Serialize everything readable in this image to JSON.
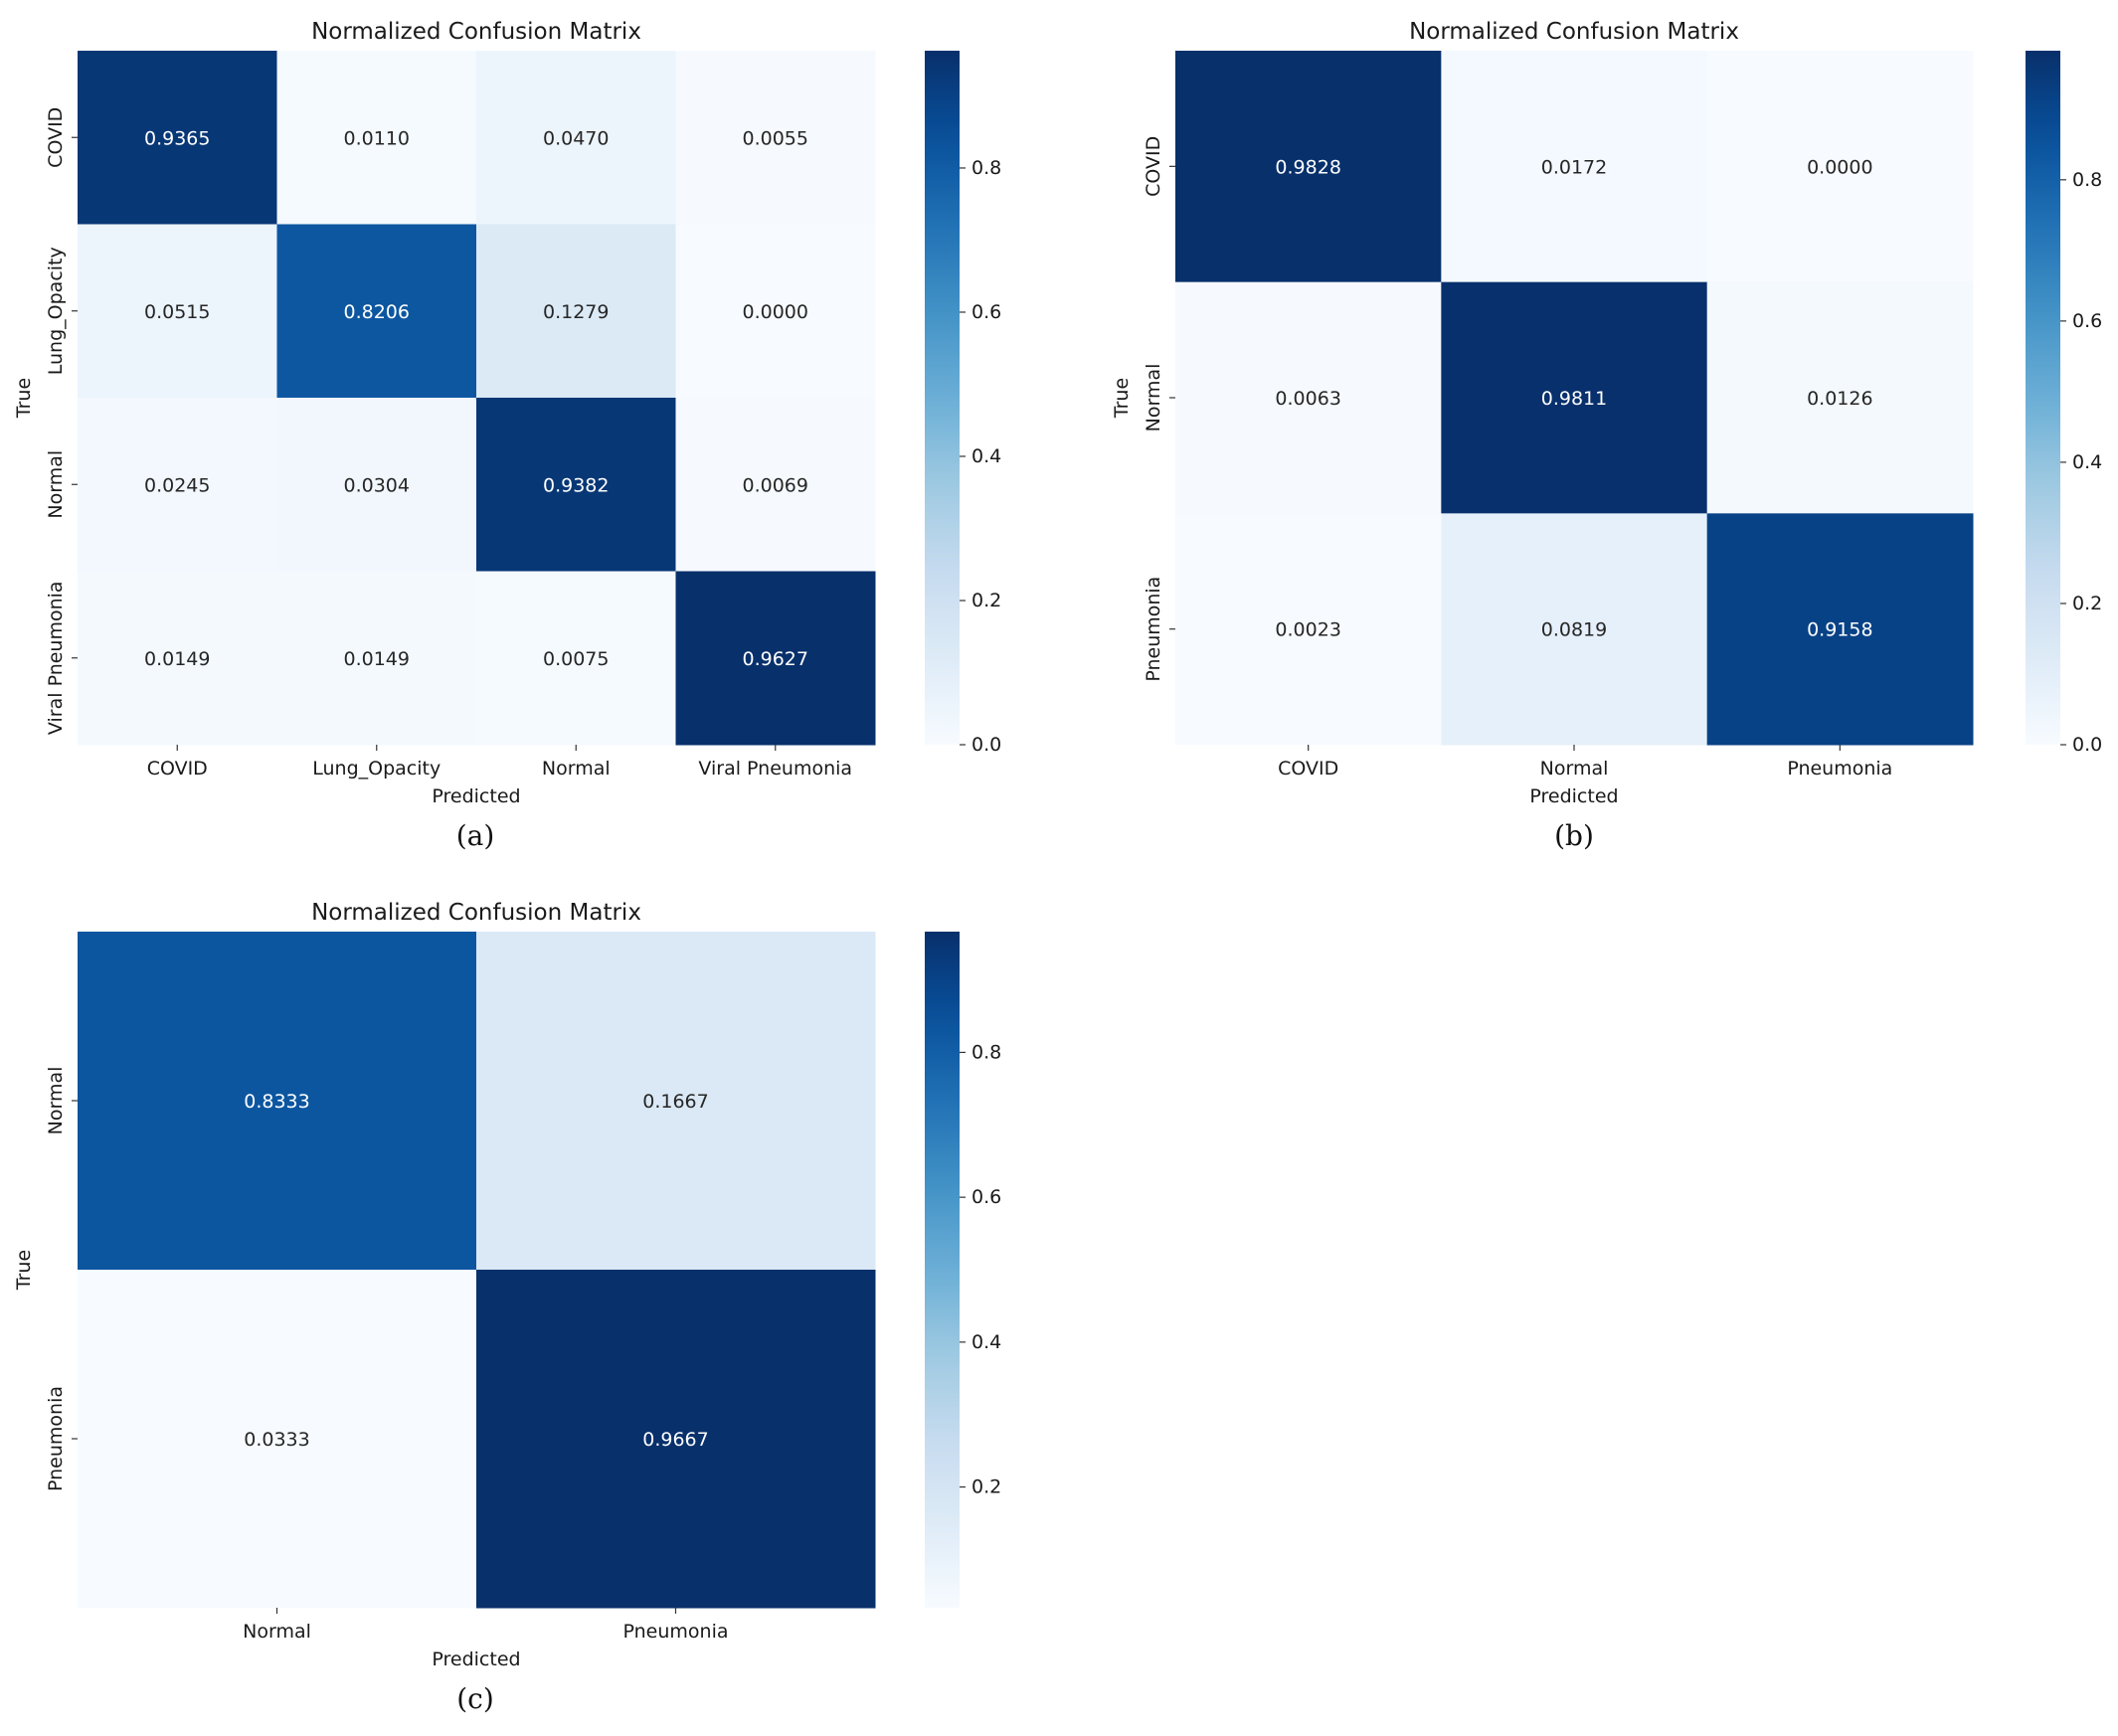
{
  "figure": {
    "panels": [
      "(a)",
      "(b)",
      "(c)"
    ]
  },
  "chart_data": [
    {
      "type": "heatmap",
      "panel": "(a)",
      "title": "Normalized Confusion Matrix",
      "xlabel": "Predicted",
      "ylabel": "True",
      "categories": [
        "COVID",
        "Lung_Opacity",
        "Normal",
        "Viral Pneumonia"
      ],
      "cell_labels": [
        [
          "0.9365",
          "0.0110",
          "0.0470",
          "0.0055"
        ],
        [
          "0.0515",
          "0.8206",
          "0.1279",
          "0.0000"
        ],
        [
          "0.0245",
          "0.0304",
          "0.9382",
          "0.0069"
        ],
        [
          "0.0149",
          "0.0149",
          "0.0075",
          "0.9627"
        ]
      ],
      "values": [
        [
          0.9365,
          0.011,
          0.047,
          0.0055
        ],
        [
          0.0515,
          0.8206,
          0.1279,
          0.0
        ],
        [
          0.0245,
          0.0304,
          0.9382,
          0.0069
        ],
        [
          0.0149,
          0.0149,
          0.0075,
          0.9627
        ]
      ],
      "colorbar": {
        "min": 0.0,
        "max": 0.9627,
        "ticks": [
          "0.0",
          "0.2",
          "0.4",
          "0.6",
          "0.8"
        ],
        "tick_values": [
          0,
          0.2,
          0.4,
          0.6,
          0.8
        ]
      },
      "colormap": "Blues"
    },
    {
      "type": "heatmap",
      "panel": "(b)",
      "title": "Normalized Confusion Matrix",
      "xlabel": "Predicted",
      "ylabel": "True",
      "categories": [
        "COVID",
        "Normal",
        "Pneumonia"
      ],
      "cell_labels": [
        [
          "0.9828",
          "0.0172",
          "0.0000"
        ],
        [
          "0.0063",
          "0.9811",
          "0.0126"
        ],
        [
          "0.0023",
          "0.0819",
          "0.9158"
        ]
      ],
      "values": [
        [
          0.9828,
          0.0172,
          0.0
        ],
        [
          0.0063,
          0.9811,
          0.0126
        ],
        [
          0.0023,
          0.0819,
          0.9158
        ]
      ],
      "colorbar": {
        "min": 0.0,
        "max": 0.9828,
        "ticks": [
          "0.0",
          "0.2",
          "0.4",
          "0.6",
          "0.8"
        ],
        "tick_values": [
          0,
          0.2,
          0.4,
          0.6,
          0.8
        ]
      },
      "colormap": "Blues"
    },
    {
      "type": "heatmap",
      "panel": "(c)",
      "title": "Normalized Confusion Matrix",
      "xlabel": "Predicted",
      "ylabel": "True",
      "categories": [
        "Normal",
        "Pneumonia"
      ],
      "cell_labels": [
        [
          "0.8333",
          "0.1667"
        ],
        [
          "0.0333",
          "0.9667"
        ]
      ],
      "values": [
        [
          0.8333,
          0.1667
        ],
        [
          0.0333,
          0.9667
        ]
      ],
      "colorbar": {
        "min": 0.0333,
        "max": 0.9667,
        "ticks": [
          "0.2",
          "0.4",
          "0.6",
          "0.8"
        ],
        "tick_values": [
          0.2,
          0.4,
          0.6,
          0.8
        ]
      },
      "colormap": "Blues"
    }
  ]
}
